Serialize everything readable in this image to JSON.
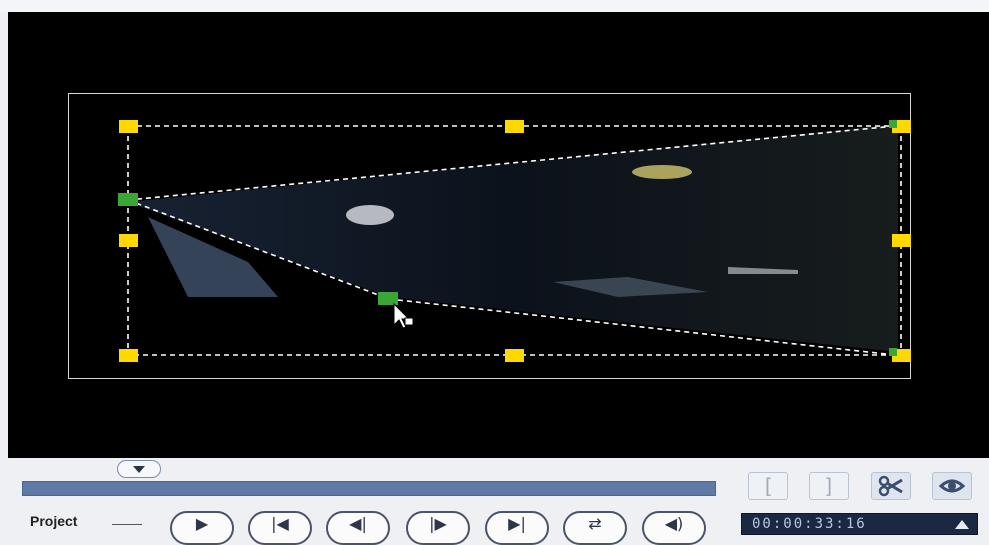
{
  "preview": {
    "handle_color": "#ffd800",
    "active_handle_color": "#3aa635",
    "guide_color": "#ffffff"
  },
  "toolbar": {
    "mark_in_icon": "[",
    "mark_out_icon": "]",
    "split_icon": "scissors-icon",
    "preview_icon": "eye-icon"
  },
  "playback": {
    "label": "Project",
    "buttons": [
      "play-icon",
      "home-icon",
      "previous-frame-icon",
      "next-frame-icon",
      "end-icon",
      "repeat-icon",
      "volume-icon"
    ],
    "timecode": "00:00:33:16"
  },
  "colors": {
    "timeline": "#5f7aa6",
    "timecode_bg": "#1b2841"
  }
}
